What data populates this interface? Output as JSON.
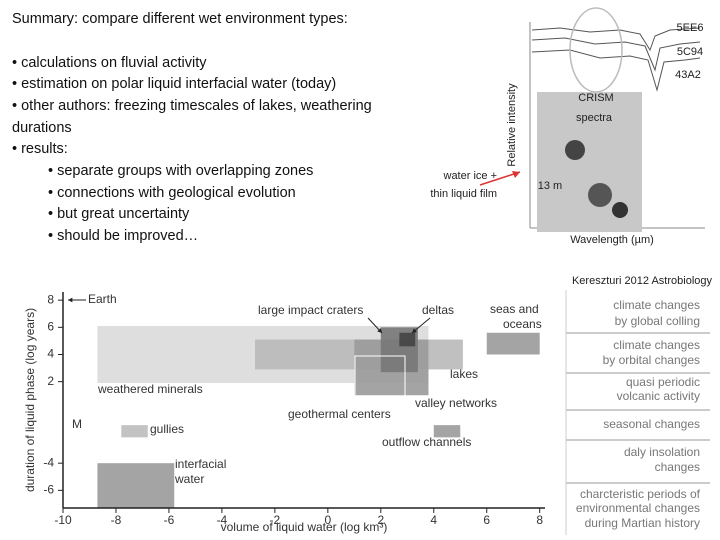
{
  "slide": {
    "title": "Summary: compare different wet environment types:",
    "bullets": [
      {
        "text": "• calculations on fluvial activity",
        "level": 1
      },
      {
        "text": "• estimation on polar liquid interfacial water (today)",
        "level": 1
      },
      {
        "text": "• other authors: freezing timescales of lakes, weathering",
        "level": 1
      },
      {
        "text": "durations",
        "level": 1
      },
      {
        "text": "• results:",
        "level": 1
      },
      {
        "text": "• separate groups with overlapping zones",
        "level": 2
      },
      {
        "text": "• connections with geological evolution",
        "level": 2
      },
      {
        "text": "• but great uncertainty",
        "level": 2
      },
      {
        "text": "• should be improved…",
        "level": 2
      }
    ],
    "water_ice_label": [
      "water ice  +",
      "thin liquid film"
    ],
    "crism_label": [
      "CRISM",
      "spectra"
    ],
    "image_labels": {
      "y_axis": "Relative intensity",
      "x_axis": "Wavelength (µm)",
      "spectra": [
        "5EE6",
        "5C94",
        "43A2"
      ],
      "scale": "13 m"
    },
    "citation": "Kereszturi 2012 Astrobiology",
    "right_list": [
      [
        "climate changes",
        "by global colling"
      ],
      [
        "climate changes",
        "by orbital changes"
      ],
      [
        "quasi periodic",
        "volcanic activity"
      ],
      [
        "seasonal changes"
      ],
      [
        "daly insolation",
        "changes"
      ],
      [
        "charcteristic periods of",
        "environmental changes",
        "during Martian history"
      ]
    ]
  },
  "chart_data": {
    "type": "range",
    "xlabel": "volume of liquid water (log km³)",
    "ylabel": "duration of liquid phase (log years)",
    "xlim": [
      -10,
      8.2
    ],
    "ylim": [
      -7.3,
      8.6
    ],
    "xticks": [
      -10,
      -8,
      -6,
      -4,
      -2,
      0,
      2,
      4,
      6,
      8
    ],
    "yticks": [
      -6,
      -4,
      2,
      4,
      6,
      8
    ],
    "regions": [
      {
        "x": [
          -8.7,
          3.8
        ],
        "y": [
          1.9,
          6.1
        ],
        "color": "#dadada"
      },
      {
        "x": [
          -2.75,
          5.1
        ],
        "y": [
          2.9,
          5.1
        ],
        "color": "#b9b9b9"
      },
      {
        "x": [
          1.0,
          3.8
        ],
        "y": [
          1.0,
          5.1
        ],
        "color": "#9a9a9a"
      },
      {
        "x": [
          2.0,
          3.4
        ],
        "y": [
          2.7,
          6.0
        ],
        "color": "#777777"
      },
      {
        "x": [
          2.7,
          3.3
        ],
        "y": [
          4.6,
          5.6
        ],
        "color": "#444444"
      },
      {
        "x": [
          6.0,
          8.0
        ],
        "y": [
          4.0,
          5.6
        ],
        "color": "#9a9a9a"
      },
      {
        "x": [
          -7.8,
          -6.8
        ],
        "y": [
          -2.1,
          -1.2
        ],
        "color": "#bdbdbd"
      },
      {
        "x": [
          4.0,
          5.0
        ],
        "y": [
          -2.1,
          -1.2
        ],
        "color": "#9a9a9a"
      },
      {
        "x": [
          -8.7,
          -5.8
        ],
        "y": [
          -7.3,
          -4.0
        ],
        "color": "#9a9a9a"
      }
    ],
    "annotations": [
      [
        "Earth"
      ],
      [
        "large impact craters"
      ],
      [
        "deltas"
      ],
      [
        "seas and",
        "oceans"
      ],
      [
        "weathered minerals"
      ],
      [
        "lakes"
      ],
      [
        "geothermal centers"
      ],
      [
        "valley networks"
      ],
      [
        "gullies"
      ],
      [
        "outflow channels"
      ],
      [
        "interfacial",
        "water"
      ],
      [
        "M"
      ]
    ]
  }
}
